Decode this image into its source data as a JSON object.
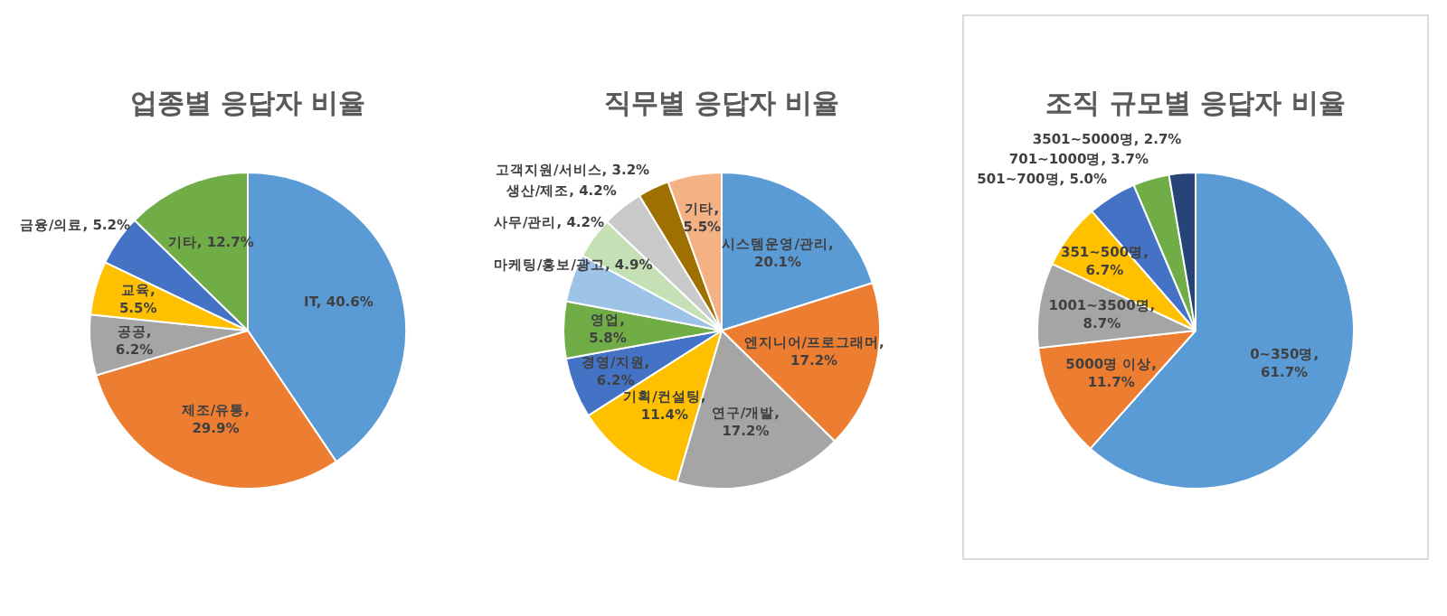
{
  "chart_data": [
    {
      "type": "pie",
      "title": "업종별 응답자 비율",
      "categories": [
        "IT",
        "제조/유통",
        "공공",
        "교육",
        "금융/의료",
        "기타"
      ],
      "values": [
        40.6,
        29.9,
        6.2,
        5.5,
        5.2,
        12.7
      ],
      "colors": [
        "#5b9bd5",
        "#ed7d31",
        "#a5a5a5",
        "#ffc000",
        "#4472c4",
        "#70ad47"
      ],
      "value_labels": [
        ", 40.6%",
        ", 29.9%",
        ", 6.2%",
        ", 5.5%",
        ", 5.2%",
        ", 12.7%"
      ]
    },
    {
      "type": "pie",
      "title": "직무별 응답자 비율",
      "categories": [
        "시스템운영/관리",
        "엔지니어/프로그래머",
        "연구/개발",
        "기획/컨설팅",
        "경영/지원",
        "영업",
        "마케팅/홍보/광고",
        "사무/관리",
        "생산/제조",
        "고객지원/서비스",
        "기타"
      ],
      "values": [
        20.1,
        17.2,
        17.2,
        11.4,
        6.2,
        5.8,
        4.9,
        4.2,
        4.2,
        3.2,
        5.5
      ],
      "colors": [
        "#5b9bd5",
        "#ed7d31",
        "#a5a5a5",
        "#ffc000",
        "#4472c4",
        "#70ad47",
        "#9dc3e6",
        "#c5e0b4",
        "#c9c9c9",
        "#9e7000",
        "#f4b183"
      ],
      "value_labels": [
        ", 20.1%",
        ", 17.2%",
        ", 17.2%",
        ", 11.4%",
        ", 6.2%",
        ", 5.8%",
        ", 4.9%",
        ", 4.2%",
        ", 4.2%",
        ", 3.2%",
        ", 5.5%"
      ]
    },
    {
      "type": "pie",
      "title": "조직 규모별 응답자 비율",
      "categories": [
        "0~350명",
        "5000명 이상",
        "1001~3500명",
        "351~500명",
        "501~700명",
        "701~1000명",
        "3501~5000명"
      ],
      "values": [
        61.7,
        11.7,
        8.7,
        6.7,
        5.0,
        3.7,
        2.7
      ],
      "colors": [
        "#5b9bd5",
        "#ed7d31",
        "#a5a5a5",
        "#ffc000",
        "#4472c4",
        "#70ad47",
        "#264478"
      ],
      "value_labels": [
        ", 61.7%",
        ", 11.7%",
        ", 8.7%",
        ", 6.7%",
        ", 5.0%",
        ", 3.7%",
        ", 2.7%"
      ]
    }
  ]
}
